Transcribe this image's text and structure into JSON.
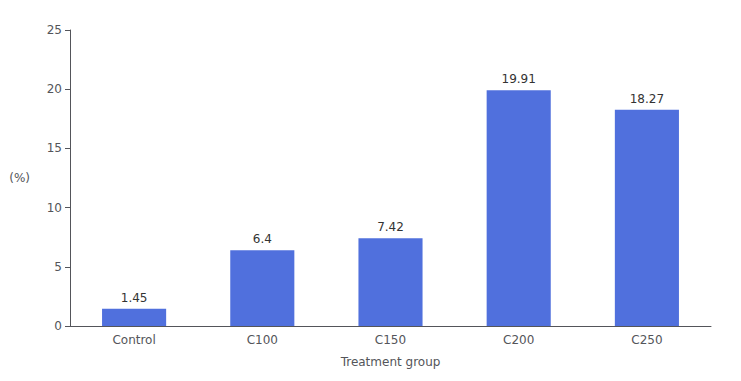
{
  "chart_data": {
    "type": "bar",
    "categories": [
      "Control",
      "C100",
      "C150",
      "C200",
      "C250"
    ],
    "values": [
      1.45,
      6.4,
      7.42,
      19.91,
      18.27
    ],
    "xlabel": "Treatment group",
    "ylabel": "(%)",
    "ylim": [
      0,
      25
    ],
    "yticks": [
      0,
      5,
      10,
      15,
      20,
      25
    ],
    "grid": false,
    "data_labels": true
  }
}
